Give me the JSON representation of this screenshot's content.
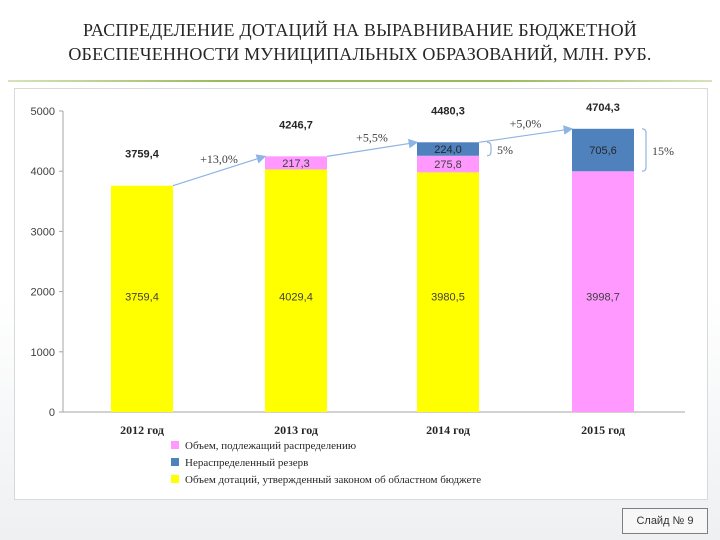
{
  "slide": {
    "title_line1": "РАСПРЕДЕЛЕНИЕ ДОТАЦИЙ НА ВЫРАВНИВАНИЕ БЮДЖЕТНОЙ",
    "title_line2": "ОБЕСПЕЧЕННОСТИ МУНИЦИПАЛЬНЫХ ОБРАЗОВАНИЙ, МЛН. РУБ.",
    "slide_number": "Слайд № 9"
  },
  "chart_data": {
    "type": "bar",
    "stacked": true,
    "categories": [
      "2012 год",
      "2013 год",
      "2014 год",
      "2015 год"
    ],
    "ylim": [
      0,
      5000
    ],
    "yticks": [
      0,
      1000,
      2000,
      3000,
      4000,
      5000
    ],
    "grid": false,
    "legend_position": "bottom",
    "series": [
      {
        "name": "Объем дотаций, утвержденный законом об областном бюджете",
        "color": "#ffff00",
        "values": [
          3759.4,
          4029.4,
          3980.5,
          3998.7
        ],
        "labels": [
          "3759,4",
          "4029,4",
          "3980,5",
          "3998,7"
        ]
      },
      {
        "name": "Объем, подлежащий распределению",
        "color": "#ff99ff",
        "values": [
          0,
          217.3,
          275.8,
          0
        ],
        "labels": [
          "",
          "217,3",
          "275,8",
          ""
        ]
      },
      {
        "name": "Нераспределенный резерв",
        "color": "#4f81bd",
        "values": [
          0,
          0,
          224.0,
          705.6
        ],
        "labels": [
          "",
          "",
          "224,0",
          "705,6"
        ]
      }
    ],
    "bottom_segment_colors": [
      "#ffff00",
      "#ffff00",
      "#ffff00",
      "#ff99ff"
    ],
    "totals": [
      3759.4,
      4246.7,
      4480.3,
      4704.3
    ],
    "total_labels": [
      "3759,4",
      "4246,7",
      "4480,3",
      "4704,3"
    ],
    "growth_labels": [
      "+13,0%",
      "+5,5%",
      "+5,0%"
    ],
    "reserve_share_labels": [
      "",
      "",
      "5%",
      "15%"
    ],
    "legend_order": [
      1,
      2,
      0
    ]
  }
}
